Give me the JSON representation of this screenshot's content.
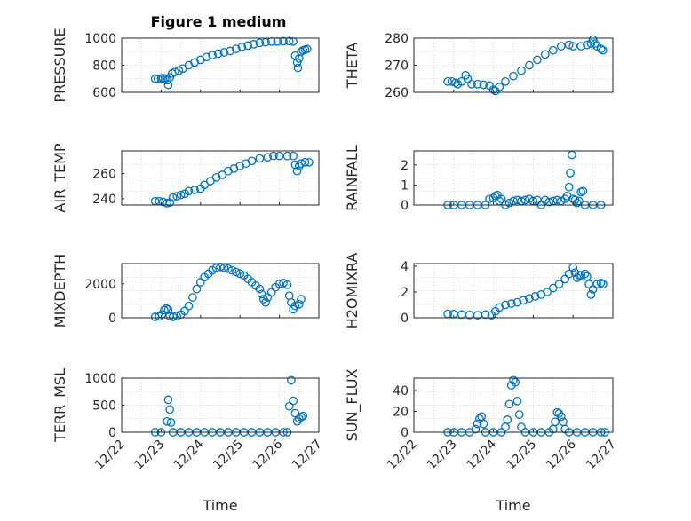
{
  "chart_data": [
    {
      "type": "scatter",
      "title": "Figure 1 medium",
      "ylabel": "PRESSURE",
      "ylim": [
        600,
        1000
      ],
      "yticks": [
        600,
        800,
        1000
      ],
      "xlim": [
        "12/22",
        "12/27"
      ],
      "color": "#0072bd",
      "grid": true,
      "points": [
        [
          0.85,
          700
        ],
        [
          0.92,
          700
        ],
        [
          1.0,
          702
        ],
        [
          1.05,
          705
        ],
        [
          1.1,
          700
        ],
        [
          1.15,
          690
        ],
        [
          1.18,
          655
        ],
        [
          1.22,
          710
        ],
        [
          1.28,
          740
        ],
        [
          1.35,
          750
        ],
        [
          1.45,
          760
        ],
        [
          1.55,
          775
        ],
        [
          1.7,
          800
        ],
        [
          1.85,
          820
        ],
        [
          2.0,
          840
        ],
        [
          2.15,
          860
        ],
        [
          2.3,
          875
        ],
        [
          2.45,
          885
        ],
        [
          2.6,
          895
        ],
        [
          2.75,
          905
        ],
        [
          2.9,
          920
        ],
        [
          3.05,
          935
        ],
        [
          3.2,
          945
        ],
        [
          3.35,
          955
        ],
        [
          3.5,
          965
        ],
        [
          3.65,
          970
        ],
        [
          3.8,
          975
        ],
        [
          3.95,
          975
        ],
        [
          4.1,
          978
        ],
        [
          4.25,
          978
        ],
        [
          4.35,
          975
        ],
        [
          4.4,
          870
        ],
        [
          4.45,
          820
        ],
        [
          4.47,
          780
        ],
        [
          4.5,
          850
        ],
        [
          4.55,
          900
        ],
        [
          4.6,
          910
        ],
        [
          4.65,
          915
        ],
        [
          4.7,
          920
        ]
      ]
    },
    {
      "type": "scatter",
      "ylabel": "THETA",
      "ylim": [
        260,
        280
      ],
      "yticks": [
        260,
        270,
        280
      ],
      "xlim": [
        "12/22",
        "12/27"
      ],
      "color": "#0072bd",
      "grid": true,
      "points": [
        [
          0.85,
          264
        ],
        [
          0.95,
          264
        ],
        [
          1.05,
          263.5
        ],
        [
          1.1,
          263
        ],
        [
          1.2,
          264
        ],
        [
          1.3,
          266.3
        ],
        [
          1.35,
          265
        ],
        [
          1.45,
          263
        ],
        [
          1.6,
          263
        ],
        [
          1.75,
          262.8
        ],
        [
          1.9,
          262.5
        ],
        [
          2.0,
          261
        ],
        [
          2.05,
          260.5
        ],
        [
          2.15,
          262
        ],
        [
          2.3,
          264
        ],
        [
          2.5,
          266
        ],
        [
          2.7,
          268
        ],
        [
          2.9,
          270
        ],
        [
          3.1,
          272
        ],
        [
          3.3,
          274
        ],
        [
          3.5,
          275.5
        ],
        [
          3.7,
          277
        ],
        [
          3.9,
          277.5
        ],
        [
          4.0,
          277
        ],
        [
          4.2,
          277
        ],
        [
          4.35,
          277.5
        ],
        [
          4.45,
          278
        ],
        [
          4.5,
          279.5
        ],
        [
          4.55,
          278
        ],
        [
          4.6,
          277
        ],
        [
          4.7,
          276
        ],
        [
          4.75,
          275.5
        ]
      ]
    },
    {
      "type": "scatter",
      "ylabel": "AIR_TEMP",
      "ylim": [
        235,
        278
      ],
      "yticks": [
        240,
        260
      ],
      "xlim": [
        "12/22",
        "12/27"
      ],
      "color": "#0072bd",
      "grid": true,
      "points": [
        [
          0.85,
          238
        ],
        [
          0.95,
          238
        ],
        [
          1.05,
          237.5
        ],
        [
          1.15,
          236.5
        ],
        [
          1.22,
          237
        ],
        [
          1.3,
          241
        ],
        [
          1.4,
          242
        ],
        [
          1.5,
          243
        ],
        [
          1.6,
          244
        ],
        [
          1.7,
          246
        ],
        [
          1.85,
          247
        ],
        [
          2.0,
          248
        ],
        [
          2.1,
          251
        ],
        [
          2.25,
          254
        ],
        [
          2.4,
          257
        ],
        [
          2.55,
          259
        ],
        [
          2.7,
          262
        ],
        [
          2.85,
          264
        ],
        [
          3.0,
          266
        ],
        [
          3.15,
          268
        ],
        [
          3.3,
          270
        ],
        [
          3.5,
          272
        ],
        [
          3.7,
          273
        ],
        [
          3.85,
          274
        ],
        [
          4.0,
          274
        ],
        [
          4.2,
          274
        ],
        [
          4.35,
          274
        ],
        [
          4.4,
          267
        ],
        [
          4.45,
          262
        ],
        [
          4.5,
          266
        ],
        [
          4.55,
          268
        ],
        [
          4.65,
          269
        ],
        [
          4.75,
          269
        ]
      ]
    },
    {
      "type": "scatter",
      "ylabel": "RAINFALL",
      "ylim": [
        0,
        2.7
      ],
      "yticks": [
        0,
        1,
        2
      ],
      "xlim": [
        "12/22",
        "12/27"
      ],
      "color": "#0072bd",
      "grid": true,
      "points": [
        [
          0.85,
          0
        ],
        [
          1.0,
          0
        ],
        [
          1.2,
          0
        ],
        [
          1.4,
          0
        ],
        [
          1.6,
          0
        ],
        [
          1.8,
          0
        ],
        [
          1.9,
          0.3
        ],
        [
          2.0,
          0.35
        ],
        [
          2.05,
          0.45
        ],
        [
          2.1,
          0.5
        ],
        [
          2.15,
          0.2
        ],
        [
          2.2,
          0.3
        ],
        [
          2.3,
          0
        ],
        [
          2.4,
          0.1
        ],
        [
          2.5,
          0.2
        ],
        [
          2.6,
          0.25
        ],
        [
          2.7,
          0.2
        ],
        [
          2.8,
          0.25
        ],
        [
          2.9,
          0.3
        ],
        [
          3.0,
          0.2
        ],
        [
          3.1,
          0.25
        ],
        [
          3.2,
          0
        ],
        [
          3.3,
          0.25
        ],
        [
          3.4,
          0.15
        ],
        [
          3.5,
          0.2
        ],
        [
          3.6,
          0.25
        ],
        [
          3.7,
          0.2
        ],
        [
          3.8,
          0.3
        ],
        [
          3.85,
          0.45
        ],
        [
          3.9,
          0.9
        ],
        [
          3.93,
          1.6
        ],
        [
          3.97,
          2.5
        ],
        [
          4.0,
          0.3
        ],
        [
          4.05,
          0.25
        ],
        [
          4.1,
          0.1
        ],
        [
          4.15,
          0.2
        ],
        [
          4.2,
          0.65
        ],
        [
          4.25,
          0.7
        ],
        [
          4.3,
          0
        ],
        [
          4.5,
          0
        ],
        [
          4.7,
          0
        ]
      ]
    },
    {
      "type": "scatter",
      "ylabel": "MIXDEPTH",
      "ylim": [
        0,
        3200
      ],
      "yticks": [
        0,
        2000
      ],
      "xlim": [
        "12/22",
        "12/27"
      ],
      "color": "#0072bd",
      "grid": true,
      "points": [
        [
          0.85,
          50
        ],
        [
          0.95,
          80
        ],
        [
          1.02,
          200
        ],
        [
          1.08,
          450
        ],
        [
          1.13,
          550
        ],
        [
          1.18,
          480
        ],
        [
          1.22,
          100
        ],
        [
          1.3,
          50
        ],
        [
          1.4,
          100
        ],
        [
          1.5,
          200
        ],
        [
          1.6,
          400
        ],
        [
          1.7,
          700
        ],
        [
          1.8,
          1200
        ],
        [
          1.9,
          1700
        ],
        [
          2.0,
          2100
        ],
        [
          2.1,
          2400
        ],
        [
          2.2,
          2600
        ],
        [
          2.3,
          2800
        ],
        [
          2.4,
          2950
        ],
        [
          2.5,
          3000
        ],
        [
          2.6,
          2950
        ],
        [
          2.7,
          2900
        ],
        [
          2.8,
          2800
        ],
        [
          2.9,
          2700
        ],
        [
          3.0,
          2600
        ],
        [
          3.1,
          2500
        ],
        [
          3.2,
          2300
        ],
        [
          3.3,
          2100
        ],
        [
          3.4,
          1900
        ],
        [
          3.5,
          1700
        ],
        [
          3.55,
          1400
        ],
        [
          3.6,
          1100
        ],
        [
          3.65,
          900
        ],
        [
          3.7,
          1200
        ],
        [
          3.8,
          1500
        ],
        [
          3.9,
          1800
        ],
        [
          4.0,
          2000
        ],
        [
          4.1,
          2050
        ],
        [
          4.2,
          1950
        ],
        [
          4.25,
          1300
        ],
        [
          4.3,
          900
        ],
        [
          4.35,
          500
        ],
        [
          4.4,
          700
        ],
        [
          4.5,
          800
        ],
        [
          4.55,
          1100
        ]
      ]
    },
    {
      "type": "scatter",
      "ylabel": "H2OMIXRA",
      "ylim": [
        0,
        4.2
      ],
      "yticks": [
        0,
        2,
        4
      ],
      "xlim": [
        "12/22",
        "12/27"
      ],
      "color": "#0072bd",
      "grid": true,
      "points": [
        [
          0.85,
          0.3
        ],
        [
          1.0,
          0.28
        ],
        [
          1.2,
          0.25
        ],
        [
          1.4,
          0.22
        ],
        [
          1.6,
          0.2
        ],
        [
          1.8,
          0.25
        ],
        [
          1.95,
          0.2
        ],
        [
          2.05,
          0.5
        ],
        [
          2.15,
          0.8
        ],
        [
          2.3,
          1.0
        ],
        [
          2.45,
          1.1
        ],
        [
          2.6,
          1.2
        ],
        [
          2.75,
          1.35
        ],
        [
          2.9,
          1.5
        ],
        [
          3.05,
          1.65
        ],
        [
          3.2,
          1.8
        ],
        [
          3.35,
          2.0
        ],
        [
          3.5,
          2.3
        ],
        [
          3.65,
          2.6
        ],
        [
          3.8,
          3.0
        ],
        [
          3.9,
          3.4
        ],
        [
          4.0,
          3.9
        ],
        [
          4.05,
          3.5
        ],
        [
          4.1,
          3.1
        ],
        [
          4.15,
          3.3
        ],
        [
          4.2,
          3.3
        ],
        [
          4.3,
          3.4
        ],
        [
          4.35,
          3.2
        ],
        [
          4.4,
          2.6
        ],
        [
          4.45,
          1.8
        ],
        [
          4.5,
          2.2
        ],
        [
          4.6,
          2.6
        ],
        [
          4.7,
          2.7
        ],
        [
          4.75,
          2.6
        ]
      ]
    },
    {
      "type": "scatter",
      "ylabel": "TERR_MSL",
      "ylim": [
        0,
        1000
      ],
      "yticks": [
        0,
        500,
        1000
      ],
      "xlim": [
        "12/22",
        "12/27"
      ],
      "xticks": [
        "12/22",
        "12/23",
        "12/24",
        "12/25",
        "12/26",
        "12/27"
      ],
      "xlabel": "Time",
      "color": "#0072bd",
      "grid": true,
      "points": [
        [
          0.85,
          0
        ],
        [
          1.0,
          0
        ],
        [
          1.15,
          200
        ],
        [
          1.18,
          600
        ],
        [
          1.22,
          420
        ],
        [
          1.25,
          180
        ],
        [
          1.3,
          0
        ],
        [
          1.5,
          0
        ],
        [
          1.7,
          0
        ],
        [
          1.9,
          0
        ],
        [
          2.1,
          0
        ],
        [
          2.3,
          0
        ],
        [
          2.5,
          0
        ],
        [
          2.7,
          0
        ],
        [
          2.9,
          0
        ],
        [
          3.1,
          0
        ],
        [
          3.3,
          0
        ],
        [
          3.5,
          0
        ],
        [
          3.7,
          0
        ],
        [
          3.9,
          0
        ],
        [
          4.1,
          0
        ],
        [
          4.2,
          0
        ],
        [
          4.25,
          480
        ],
        [
          4.3,
          960
        ],
        [
          4.35,
          580
        ],
        [
          4.4,
          350
        ],
        [
          4.45,
          200
        ],
        [
          4.5,
          250
        ],
        [
          4.55,
          280
        ],
        [
          4.6,
          300
        ]
      ]
    },
    {
      "type": "scatter",
      "ylabel": "SUN_FLUX",
      "ylim": [
        0,
        52
      ],
      "yticks": [
        0,
        20,
        40
      ],
      "xlim": [
        "12/22",
        "12/27"
      ],
      "xticks": [
        "12/22",
        "12/23",
        "12/24",
        "12/25",
        "12/26",
        "12/27"
      ],
      "xlabel": "Time",
      "color": "#0072bd",
      "grid": true,
      "points": [
        [
          0.85,
          0
        ],
        [
          1.0,
          0
        ],
        [
          1.2,
          0
        ],
        [
          1.4,
          0
        ],
        [
          1.55,
          3
        ],
        [
          1.6,
          8
        ],
        [
          1.65,
          13
        ],
        [
          1.7,
          15
        ],
        [
          1.75,
          8
        ],
        [
          1.8,
          0
        ],
        [
          2.0,
          0
        ],
        [
          2.2,
          0
        ],
        [
          2.3,
          5
        ],
        [
          2.35,
          12
        ],
        [
          2.4,
          27
        ],
        [
          2.45,
          45
        ],
        [
          2.5,
          50
        ],
        [
          2.55,
          48
        ],
        [
          2.6,
          30
        ],
        [
          2.65,
          17
        ],
        [
          2.7,
          5
        ],
        [
          2.8,
          0
        ],
        [
          3.0,
          0
        ],
        [
          3.2,
          0
        ],
        [
          3.4,
          0
        ],
        [
          3.5,
          3
        ],
        [
          3.55,
          10
        ],
        [
          3.6,
          19
        ],
        [
          3.65,
          18
        ],
        [
          3.7,
          15
        ],
        [
          3.75,
          10
        ],
        [
          3.8,
          3
        ],
        [
          3.9,
          0
        ],
        [
          4.1,
          0
        ],
        [
          4.3,
          0
        ],
        [
          4.5,
          0
        ],
        [
          4.7,
          0
        ],
        [
          4.8,
          0
        ]
      ]
    }
  ]
}
